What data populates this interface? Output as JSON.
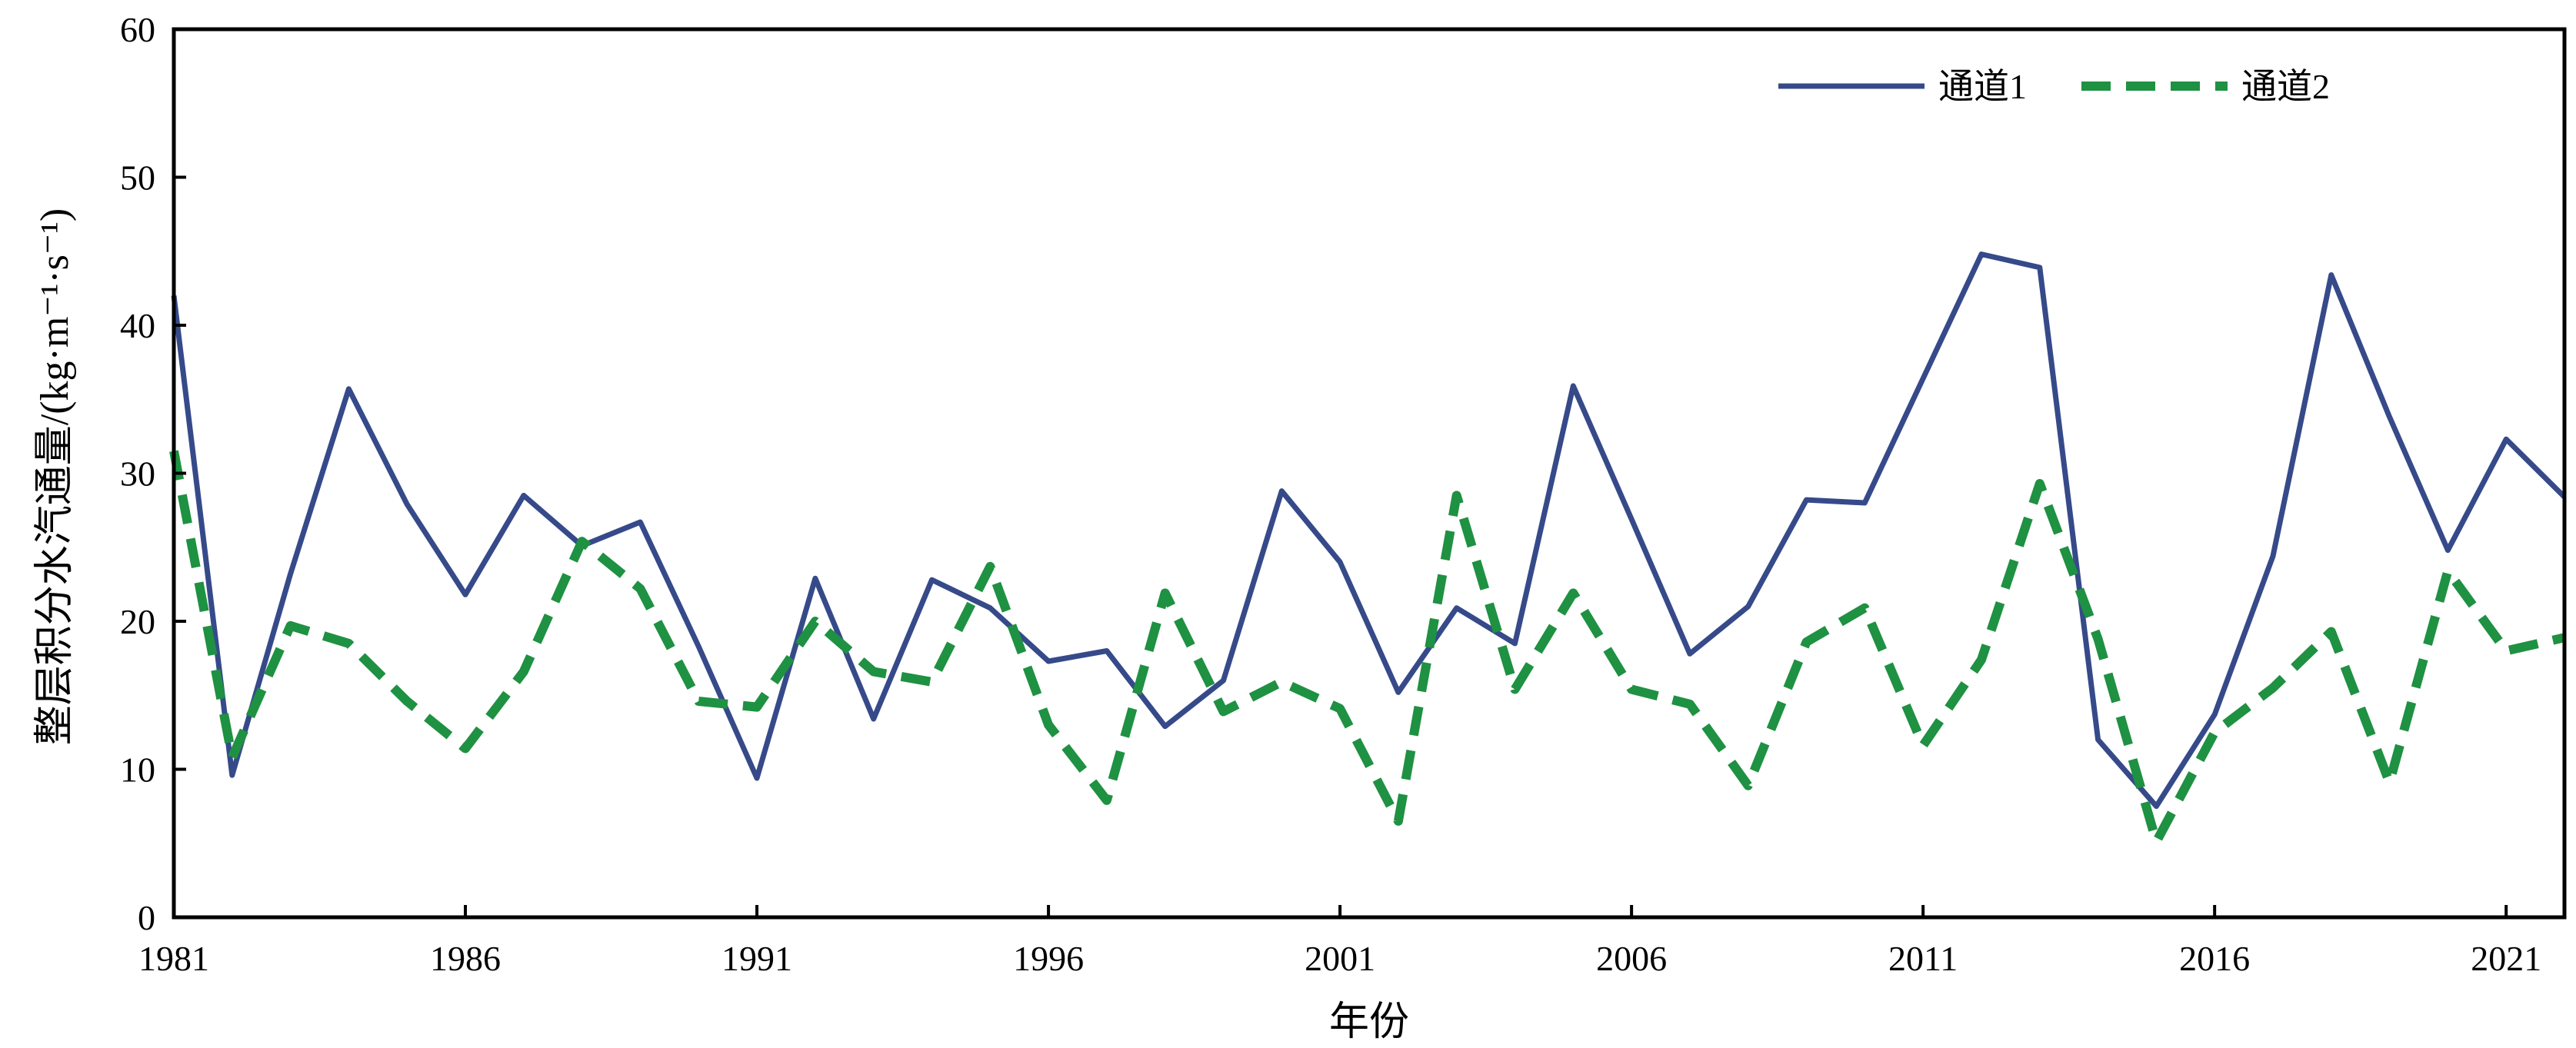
{
  "chart_data": {
    "type": "line",
    "xlabel": "年份",
    "ylabel": "整层积分水汽通量/(kg·m⁻¹·s⁻¹)",
    "xlim": [
      1981,
      2022
    ],
    "ylim": [
      0,
      60
    ],
    "x_ticks": [
      "1981",
      "1986",
      "1991",
      "1996",
      "2001",
      "2006",
      "2011",
      "2016",
      "2021"
    ],
    "y_ticks": [
      "0",
      "10",
      "20",
      "30",
      "40",
      "50",
      "60"
    ],
    "grid": false,
    "legend_position": "top-right",
    "x": [
      1981,
      1982,
      1983,
      1984,
      1985,
      1986,
      1987,
      1988,
      1989,
      1990,
      1991,
      1992,
      1993,
      1994,
      1995,
      1996,
      1997,
      1998,
      1999,
      2000,
      2001,
      2002,
      2003,
      2004,
      2005,
      2006,
      2007,
      2008,
      2009,
      2010,
      2011,
      2012,
      2013,
      2014,
      2015,
      2016,
      2017,
      2018,
      2019,
      2020,
      2021,
      2022
    ],
    "series": [
      {
        "name": "通道1",
        "color": "#364a8a",
        "style": "solid",
        "values": [
          42.0,
          9.6,
          23.2,
          35.7,
          27.9,
          21.8,
          28.5,
          25.1,
          26.7,
          18.3,
          9.4,
          22.9,
          13.4,
          22.8,
          20.9,
          17.3,
          18.0,
          12.9,
          16.0,
          28.8,
          24.0,
          15.2,
          20.9,
          18.5,
          35.9,
          26.9,
          17.8,
          21.0,
          28.2,
          28.0,
          36.4,
          44.8,
          43.9,
          12.0,
          7.5,
          13.7,
          24.4,
          43.4,
          33.8,
          24.8,
          32.3,
          28.4
        ]
      },
      {
        "name": "通道2",
        "color": "#1f9142",
        "style": "dashed",
        "values": [
          31.5,
          10.8,
          19.7,
          18.5,
          14.6,
          11.4,
          16.6,
          25.4,
          22.2,
          14.6,
          14.2,
          20.0,
          16.6,
          15.9,
          23.7,
          13.0,
          7.9,
          21.9,
          13.9,
          15.9,
          14.1,
          6.5,
          28.5,
          15.4,
          21.9,
          15.4,
          14.4,
          8.9,
          18.6,
          20.9,
          11.6,
          17.4,
          29.3,
          18.8,
          5.1,
          12.5,
          15.5,
          19.3,
          9.1,
          23.4,
          18.0,
          18.9
        ]
      }
    ]
  }
}
